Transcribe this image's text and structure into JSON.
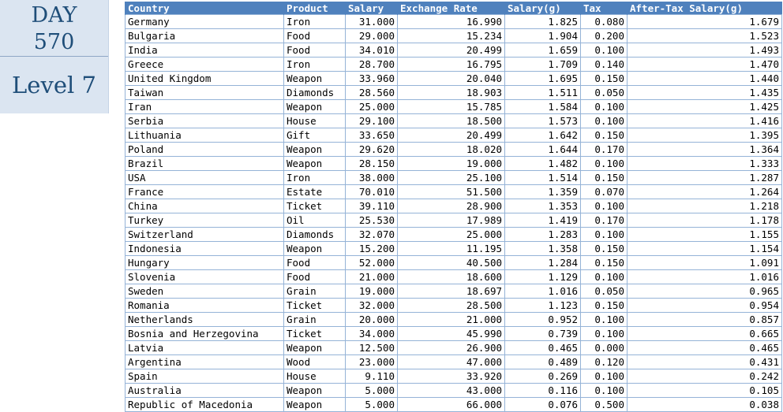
{
  "side": {
    "day_label": "DAY",
    "day_number": "570",
    "level": "Level 7"
  },
  "headers": [
    "Country",
    "Product",
    "Salary",
    "Exchange Rate",
    "Salary(g)",
    "Tax",
    "After-Tax Salary(g)"
  ],
  "rows": [
    [
      "Germany",
      "Iron",
      "31.000",
      "16.990",
      "1.825",
      "0.080",
      "1.679"
    ],
    [
      "Bulgaria",
      "Food",
      "29.000",
      "15.234",
      "1.904",
      "0.200",
      "1.523"
    ],
    [
      "India",
      "Food",
      "34.010",
      "20.499",
      "1.659",
      "0.100",
      "1.493"
    ],
    [
      "Greece",
      "Iron",
      "28.700",
      "16.795",
      "1.709",
      "0.140",
      "1.470"
    ],
    [
      "United Kingdom",
      "Weapon",
      "33.960",
      "20.040",
      "1.695",
      "0.150",
      "1.440"
    ],
    [
      "Taiwan",
      "Diamonds",
      "28.560",
      "18.903",
      "1.511",
      "0.050",
      "1.435"
    ],
    [
      "Iran",
      "Weapon",
      "25.000",
      "15.785",
      "1.584",
      "0.100",
      "1.425"
    ],
    [
      "Serbia",
      "House",
      "29.100",
      "18.500",
      "1.573",
      "0.100",
      "1.416"
    ],
    [
      "Lithuania",
      "Gift",
      "33.650",
      "20.499",
      "1.642",
      "0.150",
      "1.395"
    ],
    [
      "Poland",
      "Weapon",
      "29.620",
      "18.020",
      "1.644",
      "0.170",
      "1.364"
    ],
    [
      "Brazil",
      "Weapon",
      "28.150",
      "19.000",
      "1.482",
      "0.100",
      "1.333"
    ],
    [
      "USA",
      "Iron",
      "38.000",
      "25.100",
      "1.514",
      "0.150",
      "1.287"
    ],
    [
      "France",
      "Estate",
      "70.010",
      "51.500",
      "1.359",
      "0.070",
      "1.264"
    ],
    [
      "China",
      "Ticket",
      "39.110",
      "28.900",
      "1.353",
      "0.100",
      "1.218"
    ],
    [
      "Turkey",
      "Oil",
      "25.530",
      "17.989",
      "1.419",
      "0.170",
      "1.178"
    ],
    [
      "Switzerland",
      "Diamonds",
      "32.070",
      "25.000",
      "1.283",
      "0.100",
      "1.155"
    ],
    [
      "Indonesia",
      "Weapon",
      "15.200",
      "11.195",
      "1.358",
      "0.150",
      "1.154"
    ],
    [
      "Hungary",
      "Food",
      "52.000",
      "40.500",
      "1.284",
      "0.150",
      "1.091"
    ],
    [
      "Slovenia",
      "Food",
      "21.000",
      "18.600",
      "1.129",
      "0.100",
      "1.016"
    ],
    [
      "Sweden",
      "Grain",
      "19.000",
      "18.697",
      "1.016",
      "0.050",
      "0.965"
    ],
    [
      "Romania",
      "Ticket",
      "32.000",
      "28.500",
      "1.123",
      "0.150",
      "0.954"
    ],
    [
      "Netherlands",
      "Grain",
      "20.000",
      "21.000",
      "0.952",
      "0.100",
      "0.857"
    ],
    [
      "Bosnia and Herzegovina",
      "Ticket",
      "34.000",
      "45.990",
      "0.739",
      "0.100",
      "0.665"
    ],
    [
      "Latvia",
      "Weapon",
      "12.500",
      "26.900",
      "0.465",
      "0.000",
      "0.465"
    ],
    [
      "Argentina",
      "Wood",
      "23.000",
      "47.000",
      "0.489",
      "0.120",
      "0.431"
    ],
    [
      "Spain",
      "House",
      "9.110",
      "33.920",
      "0.269",
      "0.100",
      "0.242"
    ],
    [
      "Australia",
      "Weapon",
      "5.000",
      "43.000",
      "0.116",
      "0.100",
      "0.105"
    ],
    [
      "Republic of Macedonia",
      "Weapon",
      "5.000",
      "66.000",
      "0.076",
      "0.500",
      "0.038"
    ]
  ]
}
